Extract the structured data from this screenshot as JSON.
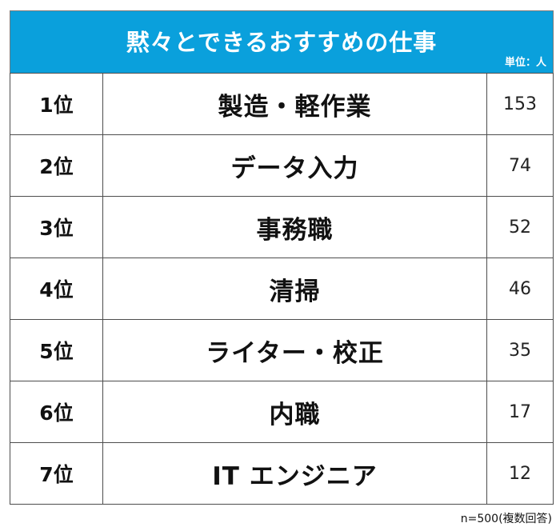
{
  "title": "黙々とできるおすすめの仕事",
  "unit_label": "単位：人",
  "note": "n=500(複数回答)",
  "chart_data": {
    "type": "table",
    "title": "黙々とできるおすすめの仕事",
    "unit": "単位：人",
    "rows": [
      {
        "rank": "1位",
        "label": "製造・軽作業",
        "value": 153
      },
      {
        "rank": "2位",
        "label": "データ入力",
        "value": 74
      },
      {
        "rank": "3位",
        "label": "事務職",
        "value": 52
      },
      {
        "rank": "4位",
        "label": "清掃",
        "value": 46
      },
      {
        "rank": "5位",
        "label": "ライター・校正",
        "value": 35
      },
      {
        "rank": "6位",
        "label": "内職",
        "value": 17
      },
      {
        "rank": "7位",
        "label": "IT エンジニア",
        "value": 12
      }
    ]
  }
}
